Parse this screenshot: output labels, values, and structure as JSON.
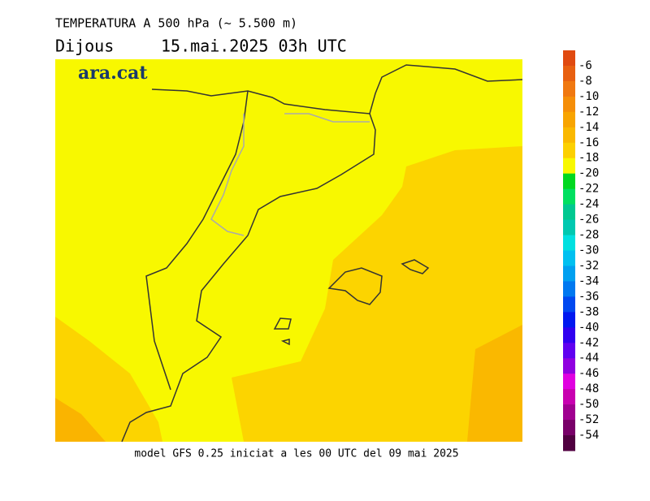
{
  "header": {
    "title": "TEMPERATURA A 500 hPa (~ 5.500 m)",
    "day": "Dijous",
    "date": "15.mai.2025 03h UTC"
  },
  "logo": "ara.cat",
  "footer": "model GFS 0.25 iniciat a les 00 UTC del 09 mai 2025",
  "legend": {
    "levels": [
      -6,
      -8,
      -10,
      -12,
      -14,
      -16,
      -18,
      -20,
      -22,
      -24,
      -26,
      -28,
      -30,
      -32,
      -34,
      -36,
      -38,
      -40,
      -42,
      -44,
      -46,
      -48,
      -50,
      -52,
      -54
    ],
    "colors": [
      "#e04a10",
      "#e86010",
      "#f07810",
      "#f58e08",
      "#f8a400",
      "#fab800",
      "#fcd000",
      "#f8f800",
      "#00d820",
      "#00e060",
      "#00c890",
      "#00c8b0",
      "#00e0e0",
      "#00c0f0",
      "#00a0f0",
      "#0078f0",
      "#0048f0",
      "#0018f0",
      "#3000f0",
      "#6000f0",
      "#9000e0",
      "#e000e0",
      "#c800b0",
      "#a00090",
      "#780068",
      "#500040"
    ]
  }
}
